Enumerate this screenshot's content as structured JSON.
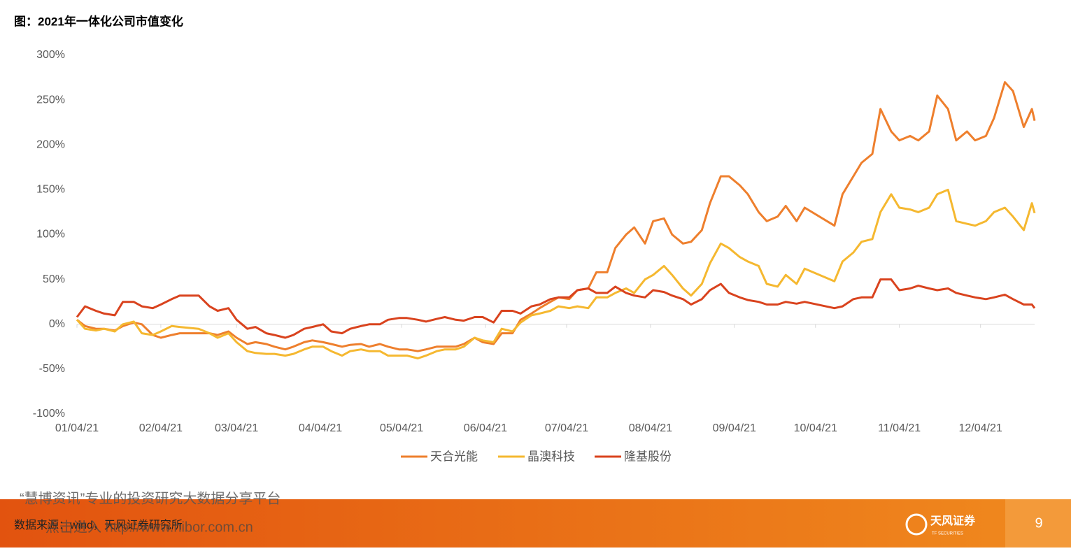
{
  "chart_data": {
    "type": "line",
    "title": "图：2021年一体化公司市值变化",
    "x": [
      "01/04/21",
      "01/07/21",
      "01/11/21",
      "01/14/21",
      "01/18/21",
      "01/21/21",
      "01/25/21",
      "01/28/21",
      "02/01/21",
      "02/04/21",
      "02/08/21",
      "02/11/21",
      "02/18/21",
      "02/22/21",
      "02/25/21",
      "03/01/21",
      "03/04/21",
      "03/08/21",
      "03/11/21",
      "03/15/21",
      "03/18/21",
      "03/22/21",
      "03/25/21",
      "03/29/21",
      "04/01/21",
      "04/05/21",
      "04/08/21",
      "04/12/21",
      "04/15/21",
      "04/19/21",
      "04/22/21",
      "04/26/21",
      "04/29/21",
      "05/03/21",
      "05/06/21",
      "05/10/21",
      "05/13/21",
      "05/17/21",
      "05/20/21",
      "05/24/21",
      "05/27/21",
      "05/31/21",
      "06/03/21",
      "06/07/21",
      "06/10/21",
      "06/14/21",
      "06/17/21",
      "06/21/21",
      "06/24/21",
      "06/28/21",
      "07/01/21",
      "07/05/21",
      "07/08/21",
      "07/12/21",
      "07/15/21",
      "07/19/21",
      "07/22/21",
      "07/26/21",
      "07/29/21",
      "08/02/21",
      "08/05/21",
      "08/09/21",
      "08/12/21",
      "08/16/21",
      "08/19/21",
      "08/23/21",
      "08/26/21",
      "08/30/21",
      "09/02/21",
      "09/06/21",
      "09/09/21",
      "09/13/21",
      "09/16/21",
      "09/20/21",
      "09/23/21",
      "09/27/21",
      "09/30/21",
      "10/11/21",
      "10/14/21",
      "10/18/21",
      "10/21/21",
      "10/25/21",
      "10/28/21",
      "11/01/21",
      "11/04/21",
      "11/08/21",
      "11/11/21",
      "11/15/21",
      "11/18/21",
      "11/22/21",
      "11/25/21",
      "11/29/21",
      "12/02/21",
      "12/06/21",
      "12/09/21",
      "12/13/21",
      "12/16/21",
      "12/20/21",
      "12/23/21",
      "12/24/21"
    ],
    "series": [
      {
        "name": "天合光能",
        "color": "#ee7f2d",
        "values": [
          5,
          -2,
          -5,
          -5,
          -7,
          -2,
          2,
          0,
          -12,
          -15,
          -12,
          -10,
          -10,
          -10,
          -12,
          -8,
          -15,
          -22,
          -20,
          -22,
          -25,
          -28,
          -25,
          -20,
          -18,
          -20,
          -22,
          -25,
          -23,
          -22,
          -25,
          -22,
          -25,
          -28,
          -28,
          -30,
          -28,
          -25,
          -25,
          -25,
          -22,
          -15,
          -20,
          -22,
          -10,
          -10,
          5,
          12,
          18,
          25,
          30,
          28,
          38,
          40,
          58,
          58,
          85,
          100,
          108,
          90,
          115,
          118,
          100,
          90,
          92,
          105,
          135,
          165,
          165,
          155,
          145,
          125,
          115,
          120,
          132,
          115,
          130,
          110,
          145,
          165,
          180,
          190,
          240,
          215,
          205,
          210,
          205,
          215,
          255,
          240,
          205,
          215,
          205,
          210,
          230,
          270,
          260,
          220,
          240,
          227
        ]
      },
      {
        "name": "晶澳科技",
        "color": "#f5b830",
        "values": [
          5,
          -5,
          -7,
          -5,
          -8,
          0,
          3,
          -10,
          -12,
          -8,
          -2,
          -3,
          -5,
          -10,
          -15,
          -10,
          -20,
          -30,
          -32,
          -33,
          -33,
          -35,
          -33,
          -28,
          -25,
          -25,
          -30,
          -35,
          -30,
          -28,
          -30,
          -30,
          -35,
          -35,
          -35,
          -38,
          -35,
          -30,
          -28,
          -28,
          -25,
          -15,
          -18,
          -20,
          -5,
          -8,
          2,
          10,
          12,
          15,
          20,
          18,
          20,
          18,
          30,
          30,
          35,
          40,
          35,
          50,
          55,
          65,
          55,
          40,
          32,
          45,
          68,
          90,
          85,
          75,
          70,
          65,
          45,
          42,
          55,
          45,
          62,
          48,
          70,
          80,
          92,
          95,
          125,
          145,
          130,
          128,
          125,
          130,
          145,
          150,
          115,
          112,
          110,
          115,
          125,
          130,
          120,
          105,
          135,
          124
        ]
      },
      {
        "name": "隆基股份",
        "color": "#d9431e",
        "values": [
          8,
          20,
          15,
          12,
          10,
          25,
          25,
          20,
          18,
          22,
          28,
          32,
          32,
          20,
          15,
          18,
          5,
          -5,
          -3,
          -10,
          -12,
          -15,
          -12,
          -5,
          -3,
          0,
          -8,
          -10,
          -5,
          -2,
          0,
          0,
          5,
          7,
          7,
          5,
          3,
          6,
          8,
          5,
          4,
          8,
          8,
          2,
          15,
          15,
          12,
          20,
          22,
          28,
          30,
          30,
          38,
          40,
          35,
          35,
          42,
          35,
          32,
          30,
          38,
          36,
          32,
          28,
          22,
          28,
          38,
          45,
          35,
          30,
          27,
          25,
          22,
          22,
          25,
          23,
          25,
          18,
          20,
          28,
          30,
          30,
          50,
          50,
          38,
          40,
          43,
          40,
          38,
          40,
          35,
          32,
          30,
          28,
          30,
          33,
          28,
          22,
          22,
          18
        ]
      }
    ],
    "xlim": [
      "01/04/21",
      "12/24/21"
    ],
    "xticks": [
      "01/04/21",
      "02/04/21",
      "03/04/21",
      "04/04/21",
      "05/04/21",
      "06/04/21",
      "07/04/21",
      "08/04/21",
      "09/04/21",
      "10/04/21",
      "11/04/21",
      "12/04/21"
    ],
    "ylim": [
      -100,
      300
    ],
    "yticks": [
      {
        "value": -100,
        "label": "-100%"
      },
      {
        "value": -50,
        "label": "-50%"
      },
      {
        "value": 0,
        "label": "0%"
      },
      {
        "value": 50,
        "label": "50%"
      },
      {
        "value": 100,
        "label": "100%"
      },
      {
        "value": 150,
        "label": "150%"
      },
      {
        "value": 200,
        "label": "200%"
      },
      {
        "value": 250,
        "label": "250%"
      },
      {
        "value": 300,
        "label": "300%"
      }
    ],
    "legend": "bottom"
  },
  "footer": {
    "source": "数据来源：wind，天风证券研究所",
    "watermark": [
      "“慧博资讯”专业的投资研究大数据分享平台",
      "点击进入 http://www.hibor.com.cn"
    ],
    "logo": "天风证券",
    "logo_sub": "TF SECURITIES",
    "page_number": 9
  }
}
